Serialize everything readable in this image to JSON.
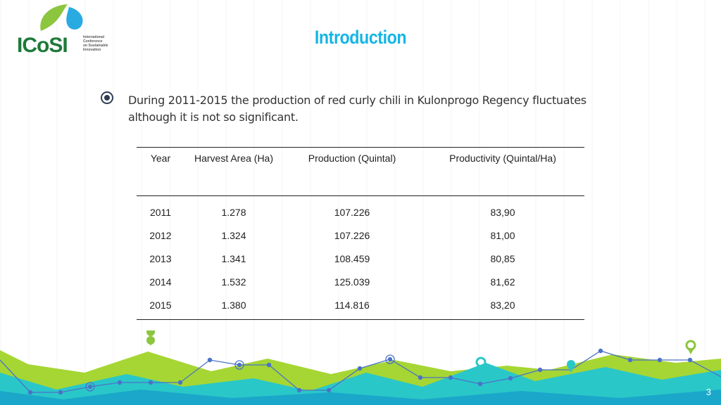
{
  "logo": {
    "wordmark": "ICoSI",
    "tagline": [
      "International",
      "Conference",
      "on Sustainable",
      "Innovation"
    ]
  },
  "title": "Introduction",
  "bullet": "During 2011-2015 the production of red curly chili in Kulonprogo Regency fluctuates although it is not so significant.",
  "table": {
    "headers": [
      "Year",
      "Harvest Area (Ha)",
      "Production (Quintal)",
      "Productivity (Quintal/Ha)"
    ],
    "rows": [
      [
        "2011",
        "1.278",
        "107.226",
        "83,90"
      ],
      [
        "2012",
        "1.324",
        "107.226",
        "81,00"
      ],
      [
        "2013",
        "1.341",
        "108.459",
        "80,85"
      ],
      [
        "2014",
        "1.532",
        "125.039",
        "81,62"
      ],
      [
        "2015",
        "1.380",
        "114.816",
        "83,20"
      ]
    ]
  },
  "page_number": "3",
  "colors": {
    "title": "#14b5e6",
    "logo_green": "#1e7a3a",
    "lime": "#a6d633",
    "teal": "#2ac7c9",
    "line": "#4a72c8"
  }
}
